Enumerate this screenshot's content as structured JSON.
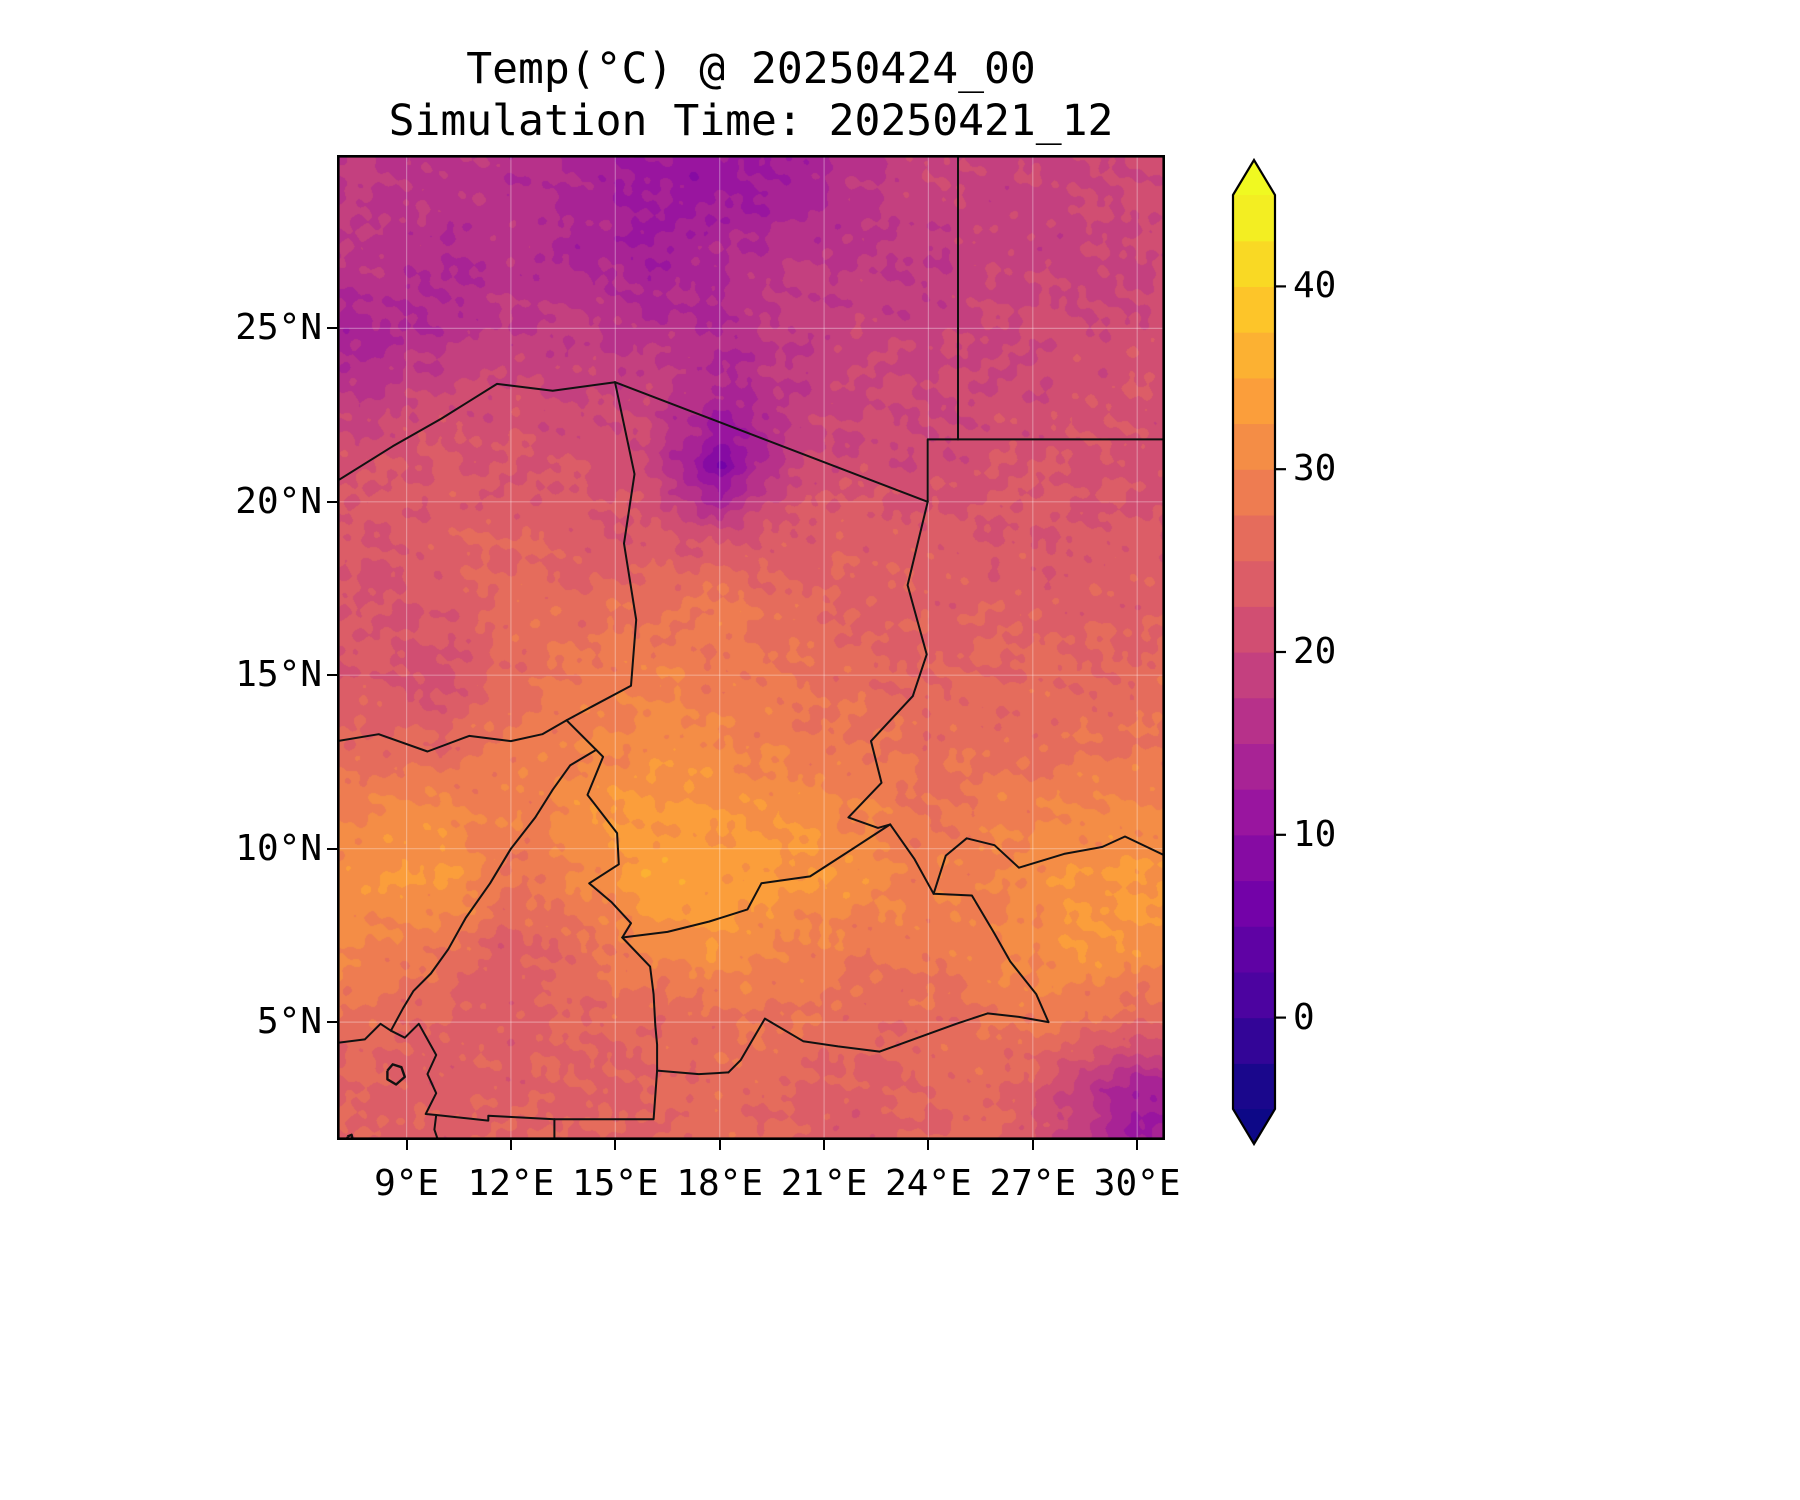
{
  "header": {
    "title": "Temp(°C) @ 20250424_00",
    "subtitle": "Simulation Time: 20250421_12"
  },
  "colors": {
    "background": "#ffffff",
    "frame": "#000000",
    "border_line": "#111111",
    "gridline": "rgba(255,255,255,0.32)",
    "plasma_anchors": [
      "#0d0887",
      "#46039f",
      "#7201a8",
      "#9c179e",
      "#bd3786",
      "#d8576b",
      "#ed7953",
      "#fb9f3a",
      "#fdca26",
      "#f0f921"
    ]
  },
  "chart_data": {
    "type": "heatmap",
    "title": "Temp(°C) @ 20250424_00",
    "subtitle": "Simulation Time: 20250421_12",
    "variable": "Temp",
    "units": "°C",
    "valid_time_label": "20250424_00",
    "simulation_time_label": "20250421_12",
    "colormap": "plasma",
    "vmin": -5,
    "vmax": 45,
    "level_step": 2.5,
    "colorbar_ticks": [
      0,
      10,
      20,
      30,
      40
    ],
    "colorbar_tick_labels": [
      "0",
      "10",
      "20",
      "30",
      "40"
    ],
    "lon_min": 7.0,
    "lon_max": 30.8,
    "lat_min": 1.6,
    "lat_max": 30.0,
    "x_ticks": [
      9,
      12,
      15,
      18,
      21,
      24,
      27,
      30
    ],
    "x_tick_labels": [
      "9°E",
      "12°E",
      "15°E",
      "18°E",
      "21°E",
      "24°E",
      "27°E",
      "30°E"
    ],
    "y_ticks": [
      25,
      20,
      15,
      10,
      5
    ],
    "y_tick_labels": [
      "25°N",
      "20°N",
      "15°N",
      "10°N",
      "5°N"
    ],
    "grid": {
      "lons": [
        8,
        10,
        12,
        14,
        16,
        18,
        20,
        22,
        24,
        26,
        28,
        30
      ],
      "lats": [
        29,
        27,
        25,
        23,
        21,
        19,
        17,
        15,
        13,
        11,
        9,
        7,
        5,
        3
      ],
      "temps_c": [
        [
          18,
          17,
          16,
          15,
          12,
          11,
          13,
          17,
          19,
          19,
          20,
          20
        ],
        [
          17,
          15,
          16,
          14,
          13,
          15,
          17,
          18,
          18,
          19,
          19,
          20
        ],
        [
          14,
          16,
          18,
          18,
          16,
          15,
          18,
          19,
          19,
          20,
          21,
          21
        ],
        [
          18,
          20,
          21,
          20,
          19,
          14,
          18,
          20,
          20,
          21,
          21,
          22
        ],
        [
          22,
          23,
          23,
          22,
          20,
          8,
          19,
          21,
          21,
          22,
          22,
          22
        ],
        [
          23,
          24,
          25,
          24,
          23,
          21,
          24,
          24,
          23,
          23,
          23,
          23
        ],
        [
          22,
          23,
          26,
          26,
          27,
          29,
          26,
          25,
          24,
          24,
          24,
          24
        ],
        [
          23,
          22,
          26,
          28,
          30,
          28,
          27,
          26,
          25,
          25,
          26,
          26
        ],
        [
          26,
          25,
          28,
          30,
          31,
          30,
          29,
          28,
          26,
          27,
          27,
          27
        ],
        [
          30,
          31,
          29,
          31,
          33,
          33,
          32,
          30,
          28,
          29,
          30,
          31
        ],
        [
          32,
          33,
          28,
          30,
          34,
          34,
          33,
          31,
          29,
          30,
          32,
          33
        ],
        [
          30,
          27,
          23,
          27,
          30,
          32,
          30,
          28,
          28,
          30,
          32,
          31
        ],
        [
          26,
          25,
          24,
          25,
          26,
          27,
          27,
          26,
          26,
          27,
          28,
          26
        ],
        [
          25,
          24,
          24,
          25,
          25,
          26,
          25,
          24,
          25,
          26,
          20,
          12
        ]
      ]
    },
    "borders": [
      {
        "name": "niger-algeria-libya",
        "points": [
          [
            7.0,
            20.6
          ],
          [
            8.6,
            21.6
          ],
          [
            10.0,
            22.4
          ],
          [
            11.6,
            23.4
          ],
          [
            13.2,
            23.2
          ],
          [
            14.99,
            23.45
          ]
        ]
      },
      {
        "name": "libya-chad",
        "points": [
          [
            14.99,
            23.45
          ],
          [
            23.98,
            20.0
          ]
        ]
      },
      {
        "name": "libya-sudan-jog",
        "points": [
          [
            23.98,
            20.0
          ],
          [
            23.98,
            21.8
          ],
          [
            24.85,
            21.8
          ]
        ]
      },
      {
        "name": "libya-egypt",
        "points": [
          [
            24.85,
            30.0
          ],
          [
            24.85,
            21.8
          ]
        ]
      },
      {
        "name": "egypt-sudan",
        "points": [
          [
            24.85,
            21.8
          ],
          [
            30.8,
            21.8
          ]
        ]
      },
      {
        "name": "chad-sudan",
        "points": [
          [
            23.98,
            20.0
          ],
          [
            23.4,
            17.6
          ],
          [
            23.95,
            15.6
          ],
          [
            23.55,
            14.4
          ],
          [
            22.35,
            13.1
          ],
          [
            22.65,
            11.9
          ],
          [
            21.7,
            10.9
          ],
          [
            22.55,
            10.6
          ],
          [
            22.9,
            10.7
          ]
        ]
      },
      {
        "name": "sudan-south-sudan",
        "points": [
          [
            24.15,
            8.7
          ],
          [
            24.5,
            9.8
          ],
          [
            25.1,
            10.3
          ],
          [
            25.9,
            10.1
          ],
          [
            26.6,
            9.45
          ],
          [
            27.9,
            9.85
          ],
          [
            29.0,
            10.05
          ],
          [
            29.65,
            10.35
          ],
          [
            30.8,
            9.8
          ]
        ]
      },
      {
        "name": "chad-car",
        "points": [
          [
            22.9,
            10.7
          ],
          [
            21.6,
            9.85
          ],
          [
            20.6,
            9.2
          ],
          [
            19.2,
            9.0
          ],
          [
            18.8,
            8.25
          ],
          [
            17.7,
            7.9
          ],
          [
            16.5,
            7.6
          ],
          [
            15.2,
            7.44
          ]
        ]
      },
      {
        "name": "car-sudan-south-sudan",
        "points": [
          [
            22.9,
            10.7
          ],
          [
            23.6,
            9.7
          ],
          [
            24.15,
            8.7
          ],
          [
            25.25,
            8.65
          ],
          [
            25.9,
            7.55
          ],
          [
            26.35,
            6.75
          ],
          [
            27.1,
            5.8
          ],
          [
            27.45,
            5.0
          ]
        ]
      },
      {
        "name": "car-drc",
        "points": [
          [
            27.45,
            5.0
          ],
          [
            26.6,
            5.15
          ],
          [
            25.7,
            5.25
          ],
          [
            24.8,
            4.95
          ],
          [
            23.7,
            4.55
          ],
          [
            22.6,
            4.15
          ],
          [
            21.4,
            4.3
          ],
          [
            20.4,
            4.45
          ],
          [
            19.3,
            5.1
          ],
          [
            18.6,
            3.9
          ],
          [
            18.25,
            3.55
          ]
        ]
      },
      {
        "name": "congo-cameroon-gabon",
        "points": [
          [
            18.25,
            3.55
          ],
          [
            17.4,
            3.5
          ],
          [
            16.2,
            3.6
          ],
          [
            16.1,
            2.2
          ],
          [
            13.25,
            2.2
          ],
          [
            13.25,
            1.6
          ]
        ]
      },
      {
        "name": "gabon-equatorial-guinea",
        "points": [
          [
            13.25,
            2.2
          ],
          [
            11.35,
            2.3
          ],
          [
            11.35,
            2.16
          ],
          [
            9.85,
            2.32
          ]
        ]
      },
      {
        "name": "chad-niger",
        "points": [
          [
            14.99,
            23.45
          ],
          [
            15.55,
            20.8
          ],
          [
            15.25,
            18.8
          ],
          [
            15.6,
            16.6
          ],
          [
            15.45,
            14.7
          ],
          [
            14.05,
            13.95
          ],
          [
            13.6,
            13.7
          ]
        ]
      },
      {
        "name": "niger-nigeria",
        "points": [
          [
            13.6,
            13.7
          ],
          [
            12.9,
            13.3
          ],
          [
            12.0,
            13.1
          ],
          [
            10.8,
            13.25
          ],
          [
            9.6,
            12.8
          ],
          [
            8.2,
            13.3
          ],
          [
            7.0,
            13.1
          ]
        ]
      },
      {
        "name": "chad-cameroon",
        "points": [
          [
            13.6,
            13.7
          ],
          [
            14.65,
            12.65
          ],
          [
            14.2,
            11.55
          ],
          [
            15.05,
            10.45
          ],
          [
            15.1,
            9.55
          ],
          [
            14.25,
            9.0
          ],
          [
            14.9,
            8.45
          ],
          [
            15.45,
            7.85
          ],
          [
            15.2,
            7.44
          ]
        ]
      },
      {
        "name": "nigeria-cameroon",
        "points": [
          [
            14.45,
            12.85
          ],
          [
            13.7,
            12.4
          ],
          [
            13.2,
            11.7
          ],
          [
            12.7,
            10.9
          ],
          [
            12.0,
            10.0
          ],
          [
            11.4,
            9.0
          ],
          [
            10.7,
            8.0
          ],
          [
            10.2,
            7.1
          ],
          [
            9.7,
            6.4
          ],
          [
            9.2,
            5.9
          ],
          [
            8.9,
            5.4
          ],
          [
            8.55,
            4.75
          ]
        ]
      },
      {
        "name": "cameroon-car",
        "points": [
          [
            15.2,
            7.44
          ],
          [
            16.0,
            6.6
          ],
          [
            16.1,
            5.8
          ],
          [
            16.15,
            4.9
          ],
          [
            16.2,
            4.35
          ],
          [
            16.2,
            3.6
          ]
        ]
      },
      {
        "name": "gulf-of-guinea-coastline",
        "points": [
          [
            7.0,
            4.4
          ],
          [
            7.8,
            4.5
          ],
          [
            8.25,
            4.95
          ],
          [
            8.55,
            4.75
          ],
          [
            8.95,
            4.55
          ],
          [
            9.35,
            4.95
          ],
          [
            9.85,
            4.05
          ],
          [
            9.6,
            3.5
          ],
          [
            9.85,
            2.95
          ],
          [
            9.55,
            2.35
          ],
          [
            9.85,
            2.32
          ],
          [
            9.8,
            1.9
          ],
          [
            9.9,
            1.6
          ]
        ]
      },
      {
        "name": "bioko-island",
        "points": [
          [
            8.45,
            3.6
          ],
          [
            8.6,
            3.78
          ],
          [
            8.85,
            3.7
          ],
          [
            8.95,
            3.42
          ],
          [
            8.7,
            3.2
          ],
          [
            8.45,
            3.35
          ],
          [
            8.45,
            3.6
          ]
        ]
      },
      {
        "name": "principe-island",
        "points": [
          [
            7.3,
            1.7
          ],
          [
            7.42,
            1.75
          ],
          [
            7.45,
            1.62
          ],
          [
            7.32,
            1.58
          ],
          [
            7.3,
            1.7
          ]
        ]
      }
    ]
  }
}
